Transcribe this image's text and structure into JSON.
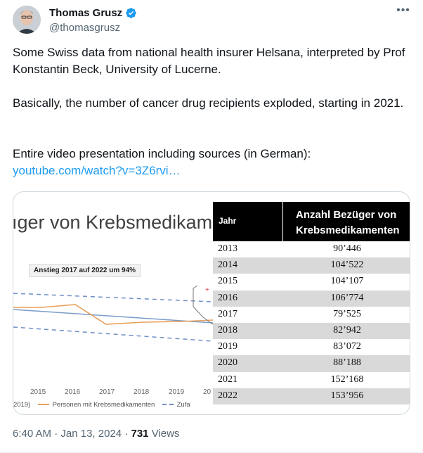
{
  "author": {
    "name": "Thomas Grusz",
    "handle": "@thomasgrusz",
    "verified": true
  },
  "tweet": {
    "paragraph1": "Some Swiss data from national health insurer Helsana, interpreted by Prof Konstantin Beck, University of Lucerne.",
    "paragraph2": "Basically, the number of cancer drug recipients exploded, starting in 2021.",
    "paragraph3": "Entire video presentation including sources (in German):",
    "link": "youtube.com/watch?v=3Z6rvi…"
  },
  "media": {
    "slide": {
      "title": "ıger von Krebsmedikam",
      "callout": "Anstieg 2017 auf 2022 um 94%",
      "years": [
        "2015",
        "2016",
        "2017",
        "2018",
        "2019",
        "20"
      ],
      "legend_prefix": "2019)",
      "legend_series": "Personen mit Krebsmedikamenten",
      "legend_dashed": "Zufa"
    },
    "table": {
      "header_year": "Jahr",
      "header_count_line1": "Anzahl Bezüger von",
      "header_count_line2": "Krebsmedikamenten",
      "rows": [
        {
          "year": "2013",
          "value": "90’446"
        },
        {
          "year": "2014",
          "value": "104’522"
        },
        {
          "year": "2015",
          "value": "104’107"
        },
        {
          "year": "2016",
          "value": "106’774"
        },
        {
          "year": "2017",
          "value": "79’525"
        },
        {
          "year": "2018",
          "value": "82’942"
        },
        {
          "year": "2019",
          "value": "83’072"
        },
        {
          "year": "2020",
          "value": "88’188"
        },
        {
          "year": "2021",
          "value": "152’168"
        },
        {
          "year": "2022",
          "value": "153’956"
        }
      ]
    }
  },
  "meta": {
    "time": "6:40 AM",
    "sep": "·",
    "date": "Jan 13, 2024",
    "views_count": "731",
    "views_label": "Views"
  },
  "colors": {
    "verified_badge": "#1d9bf0",
    "link": "#1d9bf0",
    "series_orange": "#e8a15a",
    "series_blue": "#6f8fc8"
  }
}
